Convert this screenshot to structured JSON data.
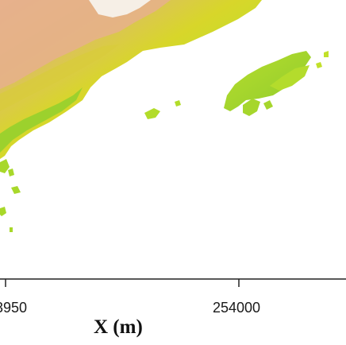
{
  "axis": {
    "x_title": "X (m)",
    "tick_labels": [
      "3950",
      "254000"
    ]
  },
  "colors": {
    "background": "#ffffff",
    "land_high": "#e6b48c",
    "land_mid": "#d8c04a",
    "land_low_yellow": "#d7e21a",
    "land_green": "#9fd22a",
    "peak": "#f6efe6",
    "axis_line": "#222222"
  }
}
